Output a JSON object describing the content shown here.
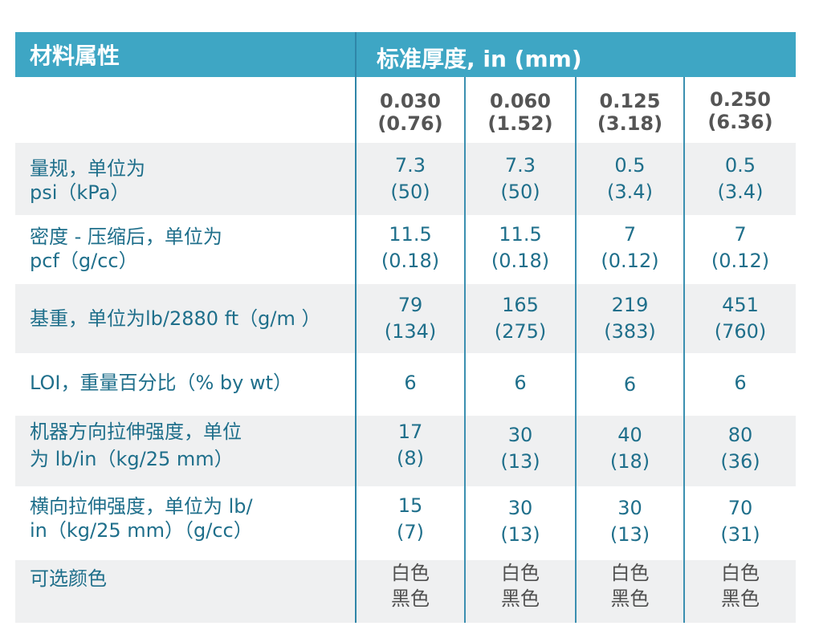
{
  "header": {
    "property_label": "材料属性",
    "thickness_label": "标准厚度, in (mm)"
  },
  "thicknesses": [
    {
      "in": "0.030",
      "mm": "(0.76)"
    },
    {
      "in": "0.060",
      "mm": "(1.52)"
    },
    {
      "in": "0.125",
      "mm": "(3.18)"
    },
    {
      "in": "0.250",
      "mm": "(6.36)"
    }
  ],
  "rows": [
    {
      "label": [
        "量规，单位为",
        "psi（kPa）"
      ],
      "values": [
        [
          "7.3",
          "(50)"
        ],
        [
          "7.3",
          "(50)"
        ],
        [
          "0.5",
          "(3.4)"
        ],
        [
          "0.5",
          "(3.4)"
        ]
      ]
    },
    {
      "label": [
        "密度 - 压缩后，单位为",
        "pcf（g/cc）"
      ],
      "values": [
        [
          "11.5",
          "(0.18)"
        ],
        [
          "11.5",
          "(0.18)"
        ],
        [
          "7",
          "(0.12)"
        ],
        [
          "7",
          "(0.12)"
        ]
      ]
    },
    {
      "label": [
        "基重，单位为lb/2880 ft（g/m ）"
      ],
      "values": [
        [
          "79",
          "(134)"
        ],
        [
          "165",
          "(275)"
        ],
        [
          "219",
          "(383)"
        ],
        [
          "451",
          "(760)"
        ]
      ]
    },
    {
      "label": [
        "LOI，重量百分比（% by wt）"
      ],
      "values": [
        [
          "6"
        ],
        [
          "6"
        ],
        [
          "6"
        ],
        [
          "6"
        ]
      ]
    },
    {
      "label": [
        "机器方向拉伸强度，单位",
        "为 lb/in（kg/25 mm）"
      ],
      "values": [
        [
          "17",
          "(8)"
        ],
        [
          "30",
          "(13)"
        ],
        [
          "40",
          "(18)"
        ],
        [
          "80",
          "(36)"
        ]
      ]
    },
    {
      "label": [
        "横向拉伸强度，单位为 lb/",
        "in（kg/25 mm）（g/cc）"
      ],
      "values": [
        [
          "15",
          "(7)"
        ],
        [
          "30",
          "(13)"
        ],
        [
          "30",
          "(13)"
        ],
        [
          "70",
          "(31)"
        ]
      ]
    },
    {
      "label": [
        "可选颜色"
      ],
      "values": [
        [
          "白色",
          "黑色"
        ],
        [
          "白色",
          "黑色"
        ],
        [
          "白色",
          "黑色"
        ],
        [
          "白色",
          "黑色"
        ]
      ]
    }
  ],
  "colors": {
    "header_bg": "#3ea6c4",
    "row_shade": "#eff0f1",
    "text_blue": "#1f6f8b",
    "divider": "#3b8fb0"
  }
}
